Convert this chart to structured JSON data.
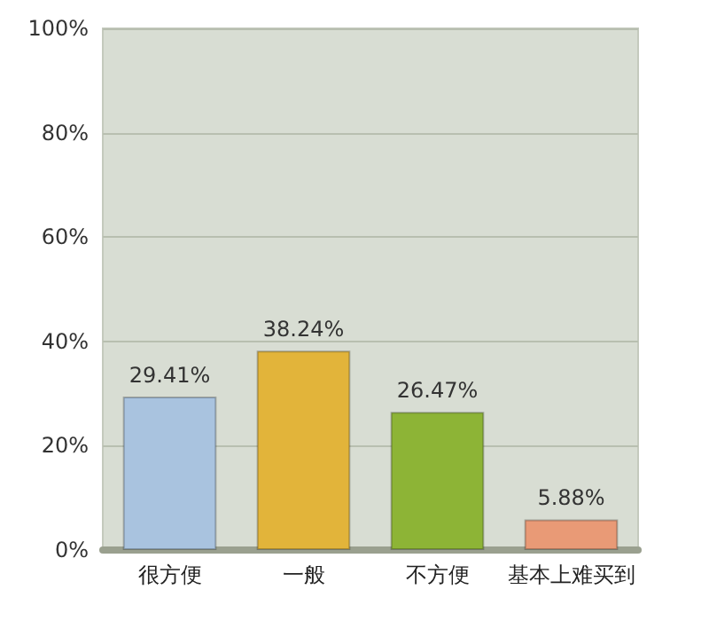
{
  "chart_data": {
    "type": "bar",
    "categories": [
      "很方便",
      "一般",
      "不方便",
      "基本上难买到"
    ],
    "values": [
      29.41,
      38.24,
      26.47,
      5.88
    ],
    "colors": [
      "#a9c3df",
      "#e2b43a",
      "#8db436",
      "#e99a76"
    ],
    "value_labels": [
      "29.41%",
      "38.24%",
      "26.47%",
      "5.88%"
    ],
    "ylim": [
      0,
      100
    ],
    "yticks": [
      {
        "value": 0,
        "label": "0%"
      },
      {
        "value": 20,
        "label": "20%"
      },
      {
        "value": 40,
        "label": "40%"
      },
      {
        "value": 60,
        "label": "60%"
      },
      {
        "value": 80,
        "label": "80%"
      },
      {
        "value": 100,
        "label": "100%"
      }
    ],
    "grid": "y"
  }
}
